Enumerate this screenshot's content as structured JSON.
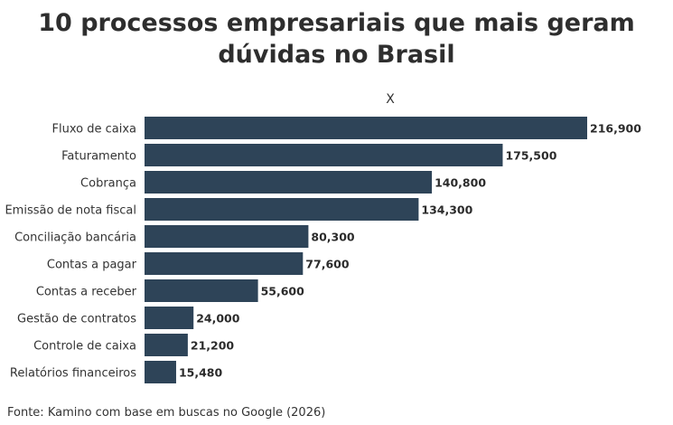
{
  "chart_data": {
    "type": "bar",
    "orientation": "horizontal",
    "title": "10 processos empresariais que mais geram dúvidas no Brasil",
    "xlabel": "X",
    "ylabel": "",
    "categories": [
      "Fluxo de caixa",
      "Faturamento",
      "Cobrança",
      "Emissão de nota fiscal",
      "Conciliação bancária",
      "Contas a pagar",
      "Contas a receber",
      "Gestão de contratos",
      "Controle de caixa",
      "Relatórios financeiros"
    ],
    "values": [
      216900,
      175500,
      140800,
      134300,
      80300,
      77600,
      55600,
      24000,
      21200,
      15480
    ],
    "value_labels": [
      "216,900",
      "175,500",
      "140,800",
      "134,300",
      "80,300",
      "77,600",
      "55,600",
      "24,000",
      "21,200",
      "15,480"
    ],
    "xlim": [
      0,
      216900
    ],
    "grid": false,
    "legend": "none",
    "bar_color": "#2e4458"
  },
  "source": "Fonte: Kamino com base em buscas no Google (2026)"
}
